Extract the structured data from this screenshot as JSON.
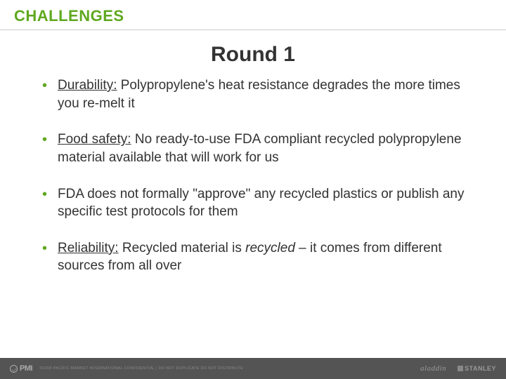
{
  "header": {
    "title": "CHALLENGES"
  },
  "subtitle": "Round 1",
  "bullets": [
    {
      "label": "Durability:",
      "text": " Polypropylene's heat resistance degrades the more times you re-melt it"
    },
    {
      "label": "Food safety:",
      "text": " No ready-to-use FDA compliant recycled polypropylene material available that will work for us"
    },
    {
      "label": "",
      "text": "FDA does not formally \"approve\" any recycled plastics or publish any specific test protocols for them"
    },
    {
      "label": "Reliability:",
      "text_pre": " Recycled material is ",
      "text_ital": "recycled",
      "text_post": " – it comes from different sources from all over"
    }
  ],
  "footer": {
    "logo_text": "PMI",
    "copy": "©2008 PACIFIC MARKET INTERNATIONAL   CONFIDENTIAL | DO NOT DUPLICATE   DO NOT DISTRIBUTE",
    "brand1": "aladdin",
    "brand2": "STANLEY"
  },
  "colors": {
    "accent": "#5fa81f",
    "text": "#333333",
    "footer_bg": "#545454",
    "footer_text": "#888888",
    "divider": "#cccccc"
  }
}
